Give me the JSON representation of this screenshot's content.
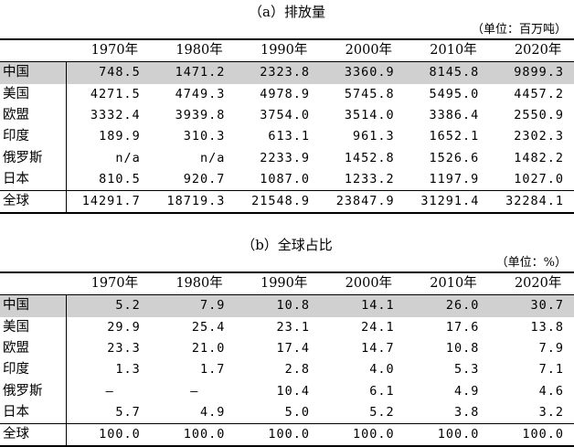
{
  "section_a": {
    "title": "（a）排放量",
    "unit": "（单位：百万吨）",
    "years": [
      "1970年",
      "1980年",
      "1990年",
      "2000年",
      "2010年",
      "2020年"
    ],
    "rows": [
      {
        "region": "中国",
        "values": [
          "748.5",
          "1471.2",
          "2323.8",
          "3360.9",
          "8145.8",
          "9899.3"
        ]
      },
      {
        "region": "美国",
        "values": [
          "4271.5",
          "4749.3",
          "4978.9",
          "5745.8",
          "5495.0",
          "4457.2"
        ]
      },
      {
        "region": "欧盟",
        "values": [
          "3332.4",
          "3939.8",
          "3754.0",
          "3514.0",
          "3386.4",
          "2550.9"
        ]
      },
      {
        "region": "印度",
        "values": [
          "189.9",
          "310.3",
          "613.1",
          "961.3",
          "1652.1",
          "2302.3"
        ]
      },
      {
        "region": "俄罗斯",
        "values": [
          "n/a",
          "n/a",
          "2233.9",
          "1452.8",
          "1526.6",
          "1482.2"
        ]
      },
      {
        "region": "日本",
        "values": [
          "810.5",
          "920.7",
          "1087.0",
          "1233.2",
          "1197.9",
          "1027.0"
        ]
      }
    ],
    "total": {
      "region": "全球",
      "values": [
        "14291.7",
        "18719.3",
        "21548.9",
        "23847.9",
        "31291.4",
        "32284.1"
      ]
    }
  },
  "section_b": {
    "title": "（b）全球占比",
    "unit": "（单位：%）",
    "years": [
      "1970年",
      "1980年",
      "1990年",
      "2000年",
      "2010年",
      "2020年"
    ],
    "rows": [
      {
        "region": "中国",
        "values": [
          "5.2",
          "7.9",
          "10.8",
          "14.1",
          "26.0",
          "30.7"
        ]
      },
      {
        "region": "美国",
        "values": [
          "29.9",
          "25.4",
          "23.1",
          "24.1",
          "17.6",
          "13.8"
        ]
      },
      {
        "region": "欧盟",
        "values": [
          "23.3",
          "21.0",
          "17.4",
          "14.7",
          "10.8",
          "7.9"
        ]
      },
      {
        "region": "印度",
        "values": [
          "1.3",
          "1.7",
          "2.8",
          "4.0",
          "5.3",
          "7.1"
        ]
      },
      {
        "region": "俄罗斯",
        "values": [
          "–",
          "–",
          "10.4",
          "6.1",
          "4.9",
          "4.6"
        ]
      },
      {
        "region": "日本",
        "values": [
          "5.7",
          "4.9",
          "5.0",
          "5.2",
          "3.8",
          "3.2"
        ]
      }
    ],
    "total": {
      "region": "全球",
      "values": [
        "100.0",
        "100.0",
        "100.0",
        "100.0",
        "100.0",
        "100.0"
      ]
    }
  },
  "highlight_color": "#d0d0d0"
}
